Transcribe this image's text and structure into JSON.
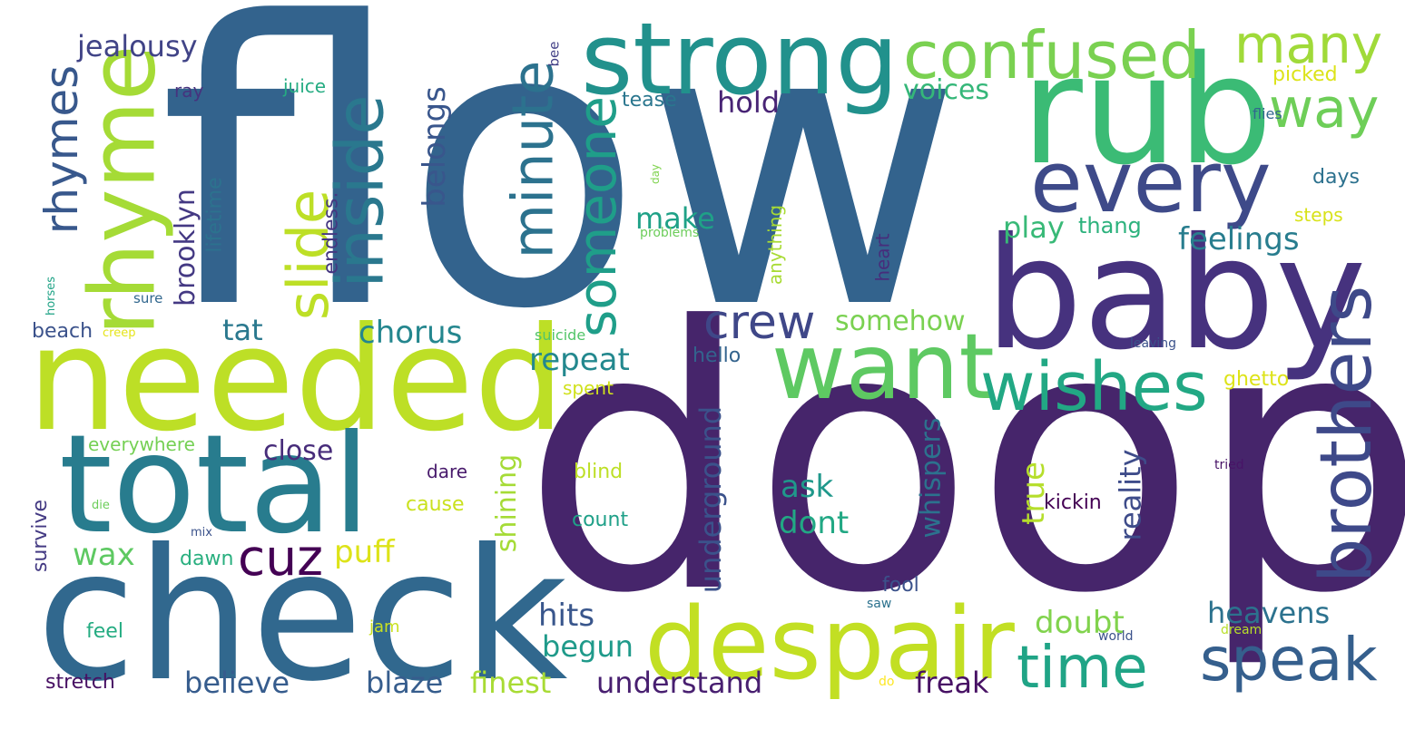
{
  "words": [
    {
      "text": "flow",
      "color": "#33638d"
    },
    {
      "text": "doop",
      "color": "#46256b"
    },
    {
      "text": "rub",
      "color": "#3bbb75"
    },
    {
      "text": "baby",
      "color": "#46327e"
    },
    {
      "text": "needed",
      "color": "#bddf26"
    },
    {
      "text": "check",
      "color": "#31688e"
    },
    {
      "text": "total",
      "color": "#287c8e"
    },
    {
      "text": "strong",
      "color": "#21918c"
    },
    {
      "text": "despair",
      "color": "#c2df23"
    },
    {
      "text": "rhyme",
      "color": "#a5db36"
    },
    {
      "text": "want",
      "color": "#5ec962"
    },
    {
      "text": "every",
      "color": "#3e4a89"
    },
    {
      "text": "confused",
      "color": "#7ad151"
    },
    {
      "text": "brothers",
      "color": "#3e4989"
    },
    {
      "text": "wishes",
      "color": "#22a884"
    },
    {
      "text": "inside",
      "color": "#2a788e"
    },
    {
      "text": "speak",
      "color": "#355f8d"
    },
    {
      "text": "time",
      "color": "#20a486"
    },
    {
      "text": "many",
      "color": "#a0da39"
    },
    {
      "text": "way",
      "color": "#6ece58"
    },
    {
      "text": "minute",
      "color": "#2c728e"
    },
    {
      "text": "someone",
      "color": "#1f9e89"
    },
    {
      "text": "slide",
      "color": "#bddf26"
    },
    {
      "text": "rhymes",
      "color": "#38588c"
    },
    {
      "text": "cuz",
      "color": "#440154"
    },
    {
      "text": "crew",
      "color": "#3f4788"
    },
    {
      "text": "jealousy",
      "color": "#414487"
    },
    {
      "text": "voices",
      "color": "#35b779"
    },
    {
      "text": "hold",
      "color": "#482475"
    },
    {
      "text": "belongs",
      "color": "#39568c"
    },
    {
      "text": "brooklyn",
      "color": "#443983"
    },
    {
      "text": "lifetime",
      "color": "#2c728e"
    },
    {
      "text": "endless.",
      "color": "#453781"
    },
    {
      "text": "make",
      "color": "#1fa187"
    },
    {
      "text": "play",
      "color": "#38b977"
    },
    {
      "text": "thang",
      "color": "#2db27d"
    },
    {
      "text": "feelings",
      "color": "#287d8e"
    },
    {
      "text": "tat",
      "color": "#2a788e"
    },
    {
      "text": "chorus",
      "color": "#24868e"
    },
    {
      "text": "somehow",
      "color": "#7ad151"
    },
    {
      "text": "repeat",
      "color": "#23888e"
    },
    {
      "text": "close",
      "color": "#472c7a"
    },
    {
      "text": "wax",
      "color": "#5ec962"
    },
    {
      "text": "puff",
      "color": "#dde318"
    },
    {
      "text": "ask",
      "color": "#1f988b"
    },
    {
      "text": "dont",
      "color": "#22a884"
    },
    {
      "text": "true",
      "color": "#b5de2b"
    },
    {
      "text": "underground",
      "color": "#3b528b"
    },
    {
      "text": "whispers",
      "color": "#2c728e"
    },
    {
      "text": "reality",
      "color": "#3e4c8a"
    },
    {
      "text": "shining",
      "color": "#a5db36"
    },
    {
      "text": "hits",
      "color": "#39568c"
    },
    {
      "text": "begun",
      "color": "#1f9a8a"
    },
    {
      "text": "doubt",
      "color": "#81d34d"
    },
    {
      "text": "heavens",
      "color": "#2c728e"
    },
    {
      "text": "believe",
      "color": "#365c8d"
    },
    {
      "text": "blaze",
      "color": "#365d8d"
    },
    {
      "text": "finest",
      "color": "#a8db34"
    },
    {
      "text": "understand",
      "color": "#481f70"
    },
    {
      "text": "freak",
      "color": "#471164"
    },
    {
      "text": "juice",
      "color": "#25ac82"
    },
    {
      "text": "ray",
      "color": "#46337e"
    },
    {
      "text": "tease",
      "color": "#2a768e"
    },
    {
      "text": "bee",
      "color": "#424086"
    },
    {
      "text": "picked",
      "color": "#dce319"
    },
    {
      "text": "flies",
      "color": "#31678e"
    },
    {
      "text": "days",
      "color": "#2c718e"
    },
    {
      "text": "steps",
      "color": "#d8e219"
    },
    {
      "text": "day",
      "color": "#7fd34e"
    },
    {
      "text": "problems",
      "color": "#6ccd5a"
    },
    {
      "text": "anything",
      "color": "#a8db34"
    },
    {
      "text": "heart",
      "color": "#472d7b"
    },
    {
      "text": "horses",
      "color": "#20a386"
    },
    {
      "text": "sure",
      "color": "#31678e"
    },
    {
      "text": "beach",
      "color": "#3b528b"
    },
    {
      "text": "creep",
      "color": "#e5e419"
    },
    {
      "text": "suicide",
      "color": "#52c569"
    },
    {
      "text": "leaving",
      "color": "#3b528b"
    },
    {
      "text": "hello",
      "color": "#33638d"
    },
    {
      "text": "spent",
      "color": "#d0e11c"
    },
    {
      "text": "ghetto",
      "color": "#dde318"
    },
    {
      "text": "everywhere",
      "color": "#75d054"
    },
    {
      "text": "dare",
      "color": "#481a6c"
    },
    {
      "text": "blind",
      "color": "#bddf26"
    },
    {
      "text": "cause",
      "color": "#cae11f"
    },
    {
      "text": "count",
      "color": "#1fa088"
    },
    {
      "text": "survive",
      "color": "#443a83"
    },
    {
      "text": "die",
      "color": "#6ccd5a"
    },
    {
      "text": "mix",
      "color": "#3b528b"
    },
    {
      "text": "dawn",
      "color": "#29af7f"
    },
    {
      "text": "kickin",
      "color": "#440154"
    },
    {
      "text": "tried",
      "color": "#481467"
    },
    {
      "text": "fool",
      "color": "#3b528b"
    },
    {
      "text": "saw",
      "color": "#2c728e"
    },
    {
      "text": "dream",
      "color": "#b8de29"
    },
    {
      "text": "world",
      "color": "#3b528b"
    },
    {
      "text": "feel",
      "color": "#25ac82"
    },
    {
      "text": "jam",
      "color": "#c8e020"
    },
    {
      "text": "stretch",
      "color": "#471063"
    },
    {
      "text": "do",
      "color": "#fde725"
    }
  ]
}
